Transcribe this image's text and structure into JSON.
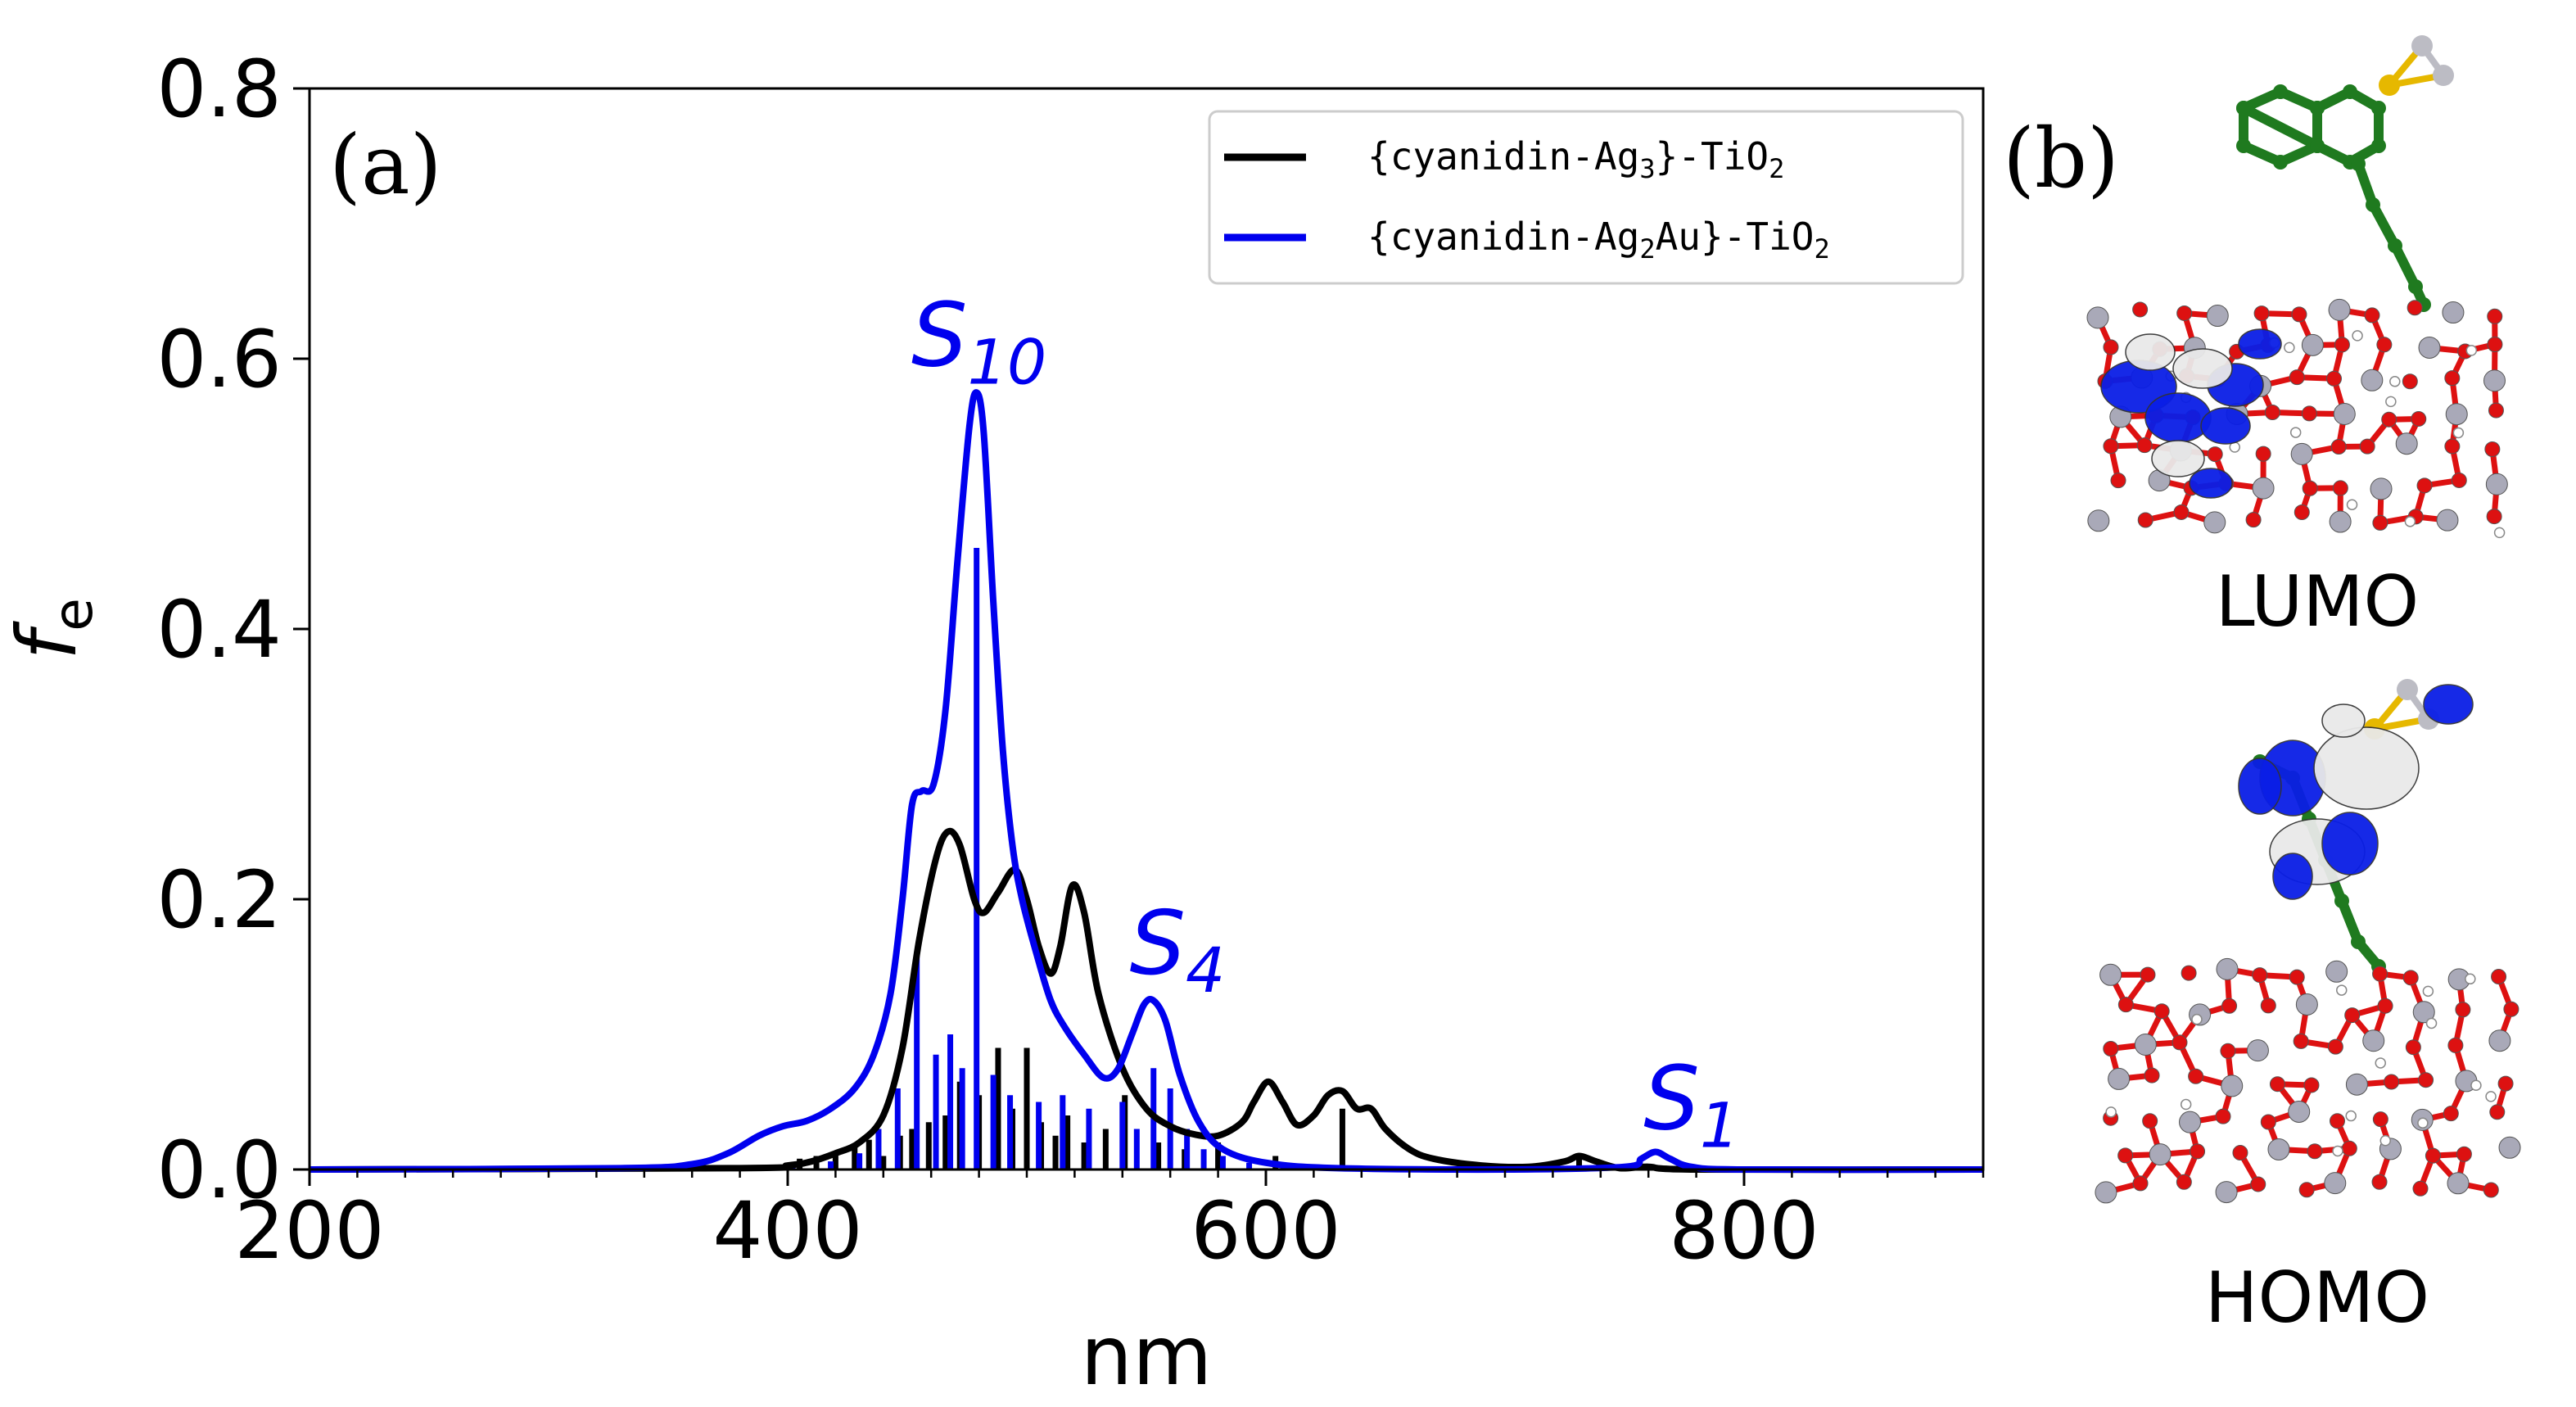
{
  "colors": {
    "series_black": "#000000",
    "series_blue": "#0000ee",
    "oxygen": "#dd1111",
    "titanium": "#a9a9b8",
    "carbon": "#1f7a1f",
    "silver": "#bcbcc4",
    "gold": "#e6b800",
    "hydrogen": "#ffffff",
    "orbital_pos": "#0a1ee6",
    "orbital_neg": "#e9e9e9"
  },
  "panel_b": {
    "label": "(b)",
    "lumo_label": "LUMO",
    "homo_label": "HOMO"
  },
  "chart_data": {
    "type": "line",
    "panel_label": "(a)",
    "xlabel": "nm",
    "ylabel": "f",
    "ylabel_sub": "e",
    "xlim": [
      200,
      900
    ],
    "ylim": [
      0,
      0.8
    ],
    "xticks": [
      200,
      400,
      600,
      800
    ],
    "xtick_labels": [
      "200",
      "400",
      "600",
      "800"
    ],
    "yticks": [
      0,
      0.2,
      0.4,
      0.6,
      0.8
    ],
    "ytick_labels": [
      "0.0",
      "0.2",
      "0.4",
      "0.6",
      "0.8"
    ],
    "x_minor_step": 20,
    "legend_position": "top-right",
    "series": [
      {
        "name": "{cyanidin-Ag3}-TiO2",
        "legend_pre": "{cyanidin-Ag",
        "legend_sub1": "3",
        "legend_mid": "}-TiO",
        "legend_sub2": "2",
        "color": "#000000",
        "curve": [
          [
            200,
            0
          ],
          [
            380,
            0.001
          ],
          [
            400,
            0.003
          ],
          [
            410,
            0.006
          ],
          [
            420,
            0.012
          ],
          [
            430,
            0.02
          ],
          [
            440,
            0.04
          ],
          [
            448,
            0.09
          ],
          [
            455,
            0.17
          ],
          [
            462,
            0.23
          ],
          [
            467,
            0.25
          ],
          [
            472,
            0.24
          ],
          [
            478,
            0.2
          ],
          [
            482,
            0.19
          ],
          [
            488,
            0.205
          ],
          [
            495,
            0.222
          ],
          [
            500,
            0.2
          ],
          [
            505,
            0.165
          ],
          [
            510,
            0.145
          ],
          [
            514,
            0.165
          ],
          [
            519,
            0.21
          ],
          [
            524,
            0.19
          ],
          [
            530,
            0.13
          ],
          [
            540,
            0.075
          ],
          [
            550,
            0.045
          ],
          [
            560,
            0.032
          ],
          [
            570,
            0.026
          ],
          [
            580,
            0.025
          ],
          [
            590,
            0.035
          ],
          [
            595,
            0.05
          ],
          [
            601,
            0.065
          ],
          [
            607,
            0.05
          ],
          [
            613,
            0.033
          ],
          [
            620,
            0.04
          ],
          [
            626,
            0.055
          ],
          [
            632,
            0.058
          ],
          [
            638,
            0.045
          ],
          [
            644,
            0.045
          ],
          [
            650,
            0.03
          ],
          [
            660,
            0.015
          ],
          [
            670,
            0.008
          ],
          [
            690,
            0.003
          ],
          [
            710,
            0.002
          ],
          [
            725,
            0.006
          ],
          [
            731,
            0.01
          ],
          [
            738,
            0.006
          ],
          [
            748,
            0.001
          ],
          [
            760,
            0.002
          ],
          [
            780,
            0.0
          ],
          [
            900,
            0.0
          ]
        ],
        "sticks": [
          [
            405,
            0.008
          ],
          [
            412,
            0.01
          ],
          [
            420,
            0.012
          ],
          [
            428,
            0.018
          ],
          [
            434,
            0.022
          ],
          [
            440,
            0.01
          ],
          [
            447,
            0.025
          ],
          [
            452,
            0.03
          ],
          [
            459,
            0.035
          ],
          [
            466,
            0.04
          ],
          [
            472,
            0.065
          ],
          [
            480,
            0.055
          ],
          [
            488,
            0.09
          ],
          [
            494,
            0.045
          ],
          [
            500,
            0.09
          ],
          [
            506,
            0.035
          ],
          [
            512,
            0.025
          ],
          [
            517,
            0.04
          ],
          [
            524,
            0.02
          ],
          [
            533,
            0.03
          ],
          [
            541,
            0.055
          ],
          [
            555,
            0.02
          ],
          [
            566,
            0.015
          ],
          [
            580,
            0.02
          ],
          [
            604,
            0.01
          ],
          [
            632,
            0.045
          ],
          [
            731,
            0.008
          ]
        ]
      },
      {
        "name": "{cyanidin-Ag2Au}-TiO2",
        "legend_pre": "{cyanidin-Ag",
        "legend_sub1": "2",
        "legend_mid": "Au}-TiO",
        "legend_sub2": "2",
        "color": "#0000ee",
        "curve": [
          [
            200,
            0
          ],
          [
            330,
            0.001
          ],
          [
            360,
            0.004
          ],
          [
            375,
            0.012
          ],
          [
            388,
            0.025
          ],
          [
            398,
            0.032
          ],
          [
            408,
            0.036
          ],
          [
            418,
            0.045
          ],
          [
            428,
            0.06
          ],
          [
            436,
            0.085
          ],
          [
            443,
            0.13
          ],
          [
            448,
            0.2
          ],
          [
            452,
            0.27
          ],
          [
            456,
            0.28
          ],
          [
            461,
            0.285
          ],
          [
            466,
            0.34
          ],
          [
            471,
            0.45
          ],
          [
            476,
            0.55
          ],
          [
            479,
            0.575
          ],
          [
            482,
            0.545
          ],
          [
            486,
            0.42
          ],
          [
            490,
            0.31
          ],
          [
            494,
            0.24
          ],
          [
            498,
            0.2
          ],
          [
            504,
            0.16
          ],
          [
            510,
            0.125
          ],
          [
            516,
            0.105
          ],
          [
            524,
            0.085
          ],
          [
            532,
            0.068
          ],
          [
            538,
            0.074
          ],
          [
            544,
            0.1
          ],
          [
            549,
            0.122
          ],
          [
            553,
            0.125
          ],
          [
            558,
            0.11
          ],
          [
            564,
            0.07
          ],
          [
            572,
            0.035
          ],
          [
            582,
            0.015
          ],
          [
            600,
            0.005
          ],
          [
            630,
            0.001
          ],
          [
            700,
            0.0
          ],
          [
            750,
            0.002
          ],
          [
            757,
            0.008
          ],
          [
            763,
            0.013
          ],
          [
            769,
            0.008
          ],
          [
            778,
            0.002
          ],
          [
            800,
            0.0
          ],
          [
            900,
            0.0
          ]
        ],
        "sticks": [
          [
            392,
            0.003
          ],
          [
            402,
            0.004
          ],
          [
            418,
            0.006
          ],
          [
            430,
            0.012
          ],
          [
            438,
            0.03
          ],
          [
            446,
            0.06
          ],
          [
            454,
            0.16
          ],
          [
            462,
            0.085
          ],
          [
            468,
            0.1
          ],
          [
            473,
            0.075
          ],
          [
            479,
            0.46
          ],
          [
            486,
            0.07
          ],
          [
            493,
            0.055
          ],
          [
            505,
            0.05
          ],
          [
            515,
            0.055
          ],
          [
            526,
            0.045
          ],
          [
            540,
            0.05
          ],
          [
            546,
            0.03
          ],
          [
            553,
            0.075
          ],
          [
            560,
            0.06
          ],
          [
            567,
            0.03
          ],
          [
            574,
            0.015
          ],
          [
            582,
            0.01
          ],
          [
            593,
            0.005
          ],
          [
            764,
            0.003
          ]
        ]
      }
    ],
    "annotations": [
      {
        "text": "S",
        "sub": "10",
        "x": 480,
        "y": 0.595,
        "color": "#0000ee"
      },
      {
        "text": "S",
        "sub": "4",
        "x": 563,
        "y": 0.145,
        "color": "#0000ee"
      },
      {
        "text": "S",
        "sub": "1",
        "x": 778,
        "y": 0.03,
        "color": "#0000ee"
      }
    ]
  }
}
